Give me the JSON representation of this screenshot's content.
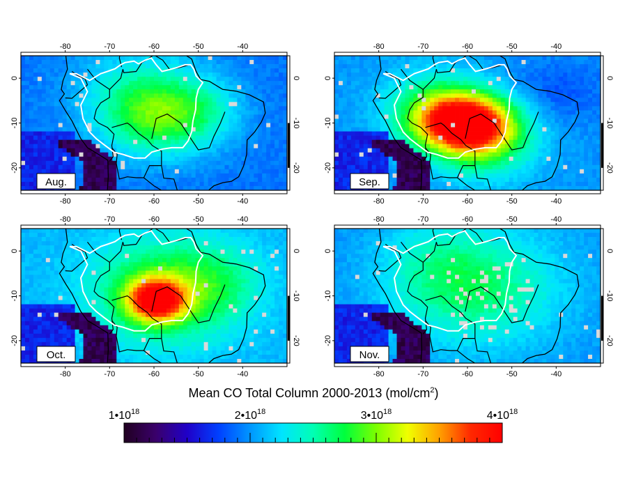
{
  "title": "Mean CO Total Column 2000-2013 (mol/cm",
  "title_sup": "2",
  "title_close": ")",
  "colorbar": {
    "labels": [
      {
        "base": "1•10",
        "exp": "18",
        "value": 1e+18
      },
      {
        "base": "2•10",
        "exp": "18",
        "value": 2e+18
      },
      {
        "base": "3•10",
        "exp": "18",
        "value": 3e+18
      },
      {
        "base": "4•10",
        "exp": "18",
        "value": 4e+18
      }
    ],
    "range": [
      1e+18,
      4e+18
    ],
    "colors": [
      "#200020",
      "#3a006a",
      "#2000c8",
      "#0040ff",
      "#0096ff",
      "#00e4ff",
      "#00ffb4",
      "#00ff3c",
      "#7cff00",
      "#f0ff00",
      "#ffa000",
      "#ff2800",
      "#ff0000"
    ]
  },
  "map": {
    "lon_range": [
      -90,
      -30
    ],
    "lat_range": [
      -25,
      5
    ],
    "lon_ticks": [
      "-80",
      "-70",
      "-60",
      "-50",
      "-40"
    ],
    "lat_ticks": [
      "0",
      "-10",
      "-20"
    ]
  },
  "panels": [
    {
      "label": "Aug.",
      "peak_co": 2.9e+18
    },
    {
      "label": "Sep.",
      "peak_co": 4e+18
    },
    {
      "label": "Oct.",
      "peak_co": 3.9e+18
    },
    {
      "label": "Nov.",
      "peak_co": 2.6e+18
    }
  ]
}
